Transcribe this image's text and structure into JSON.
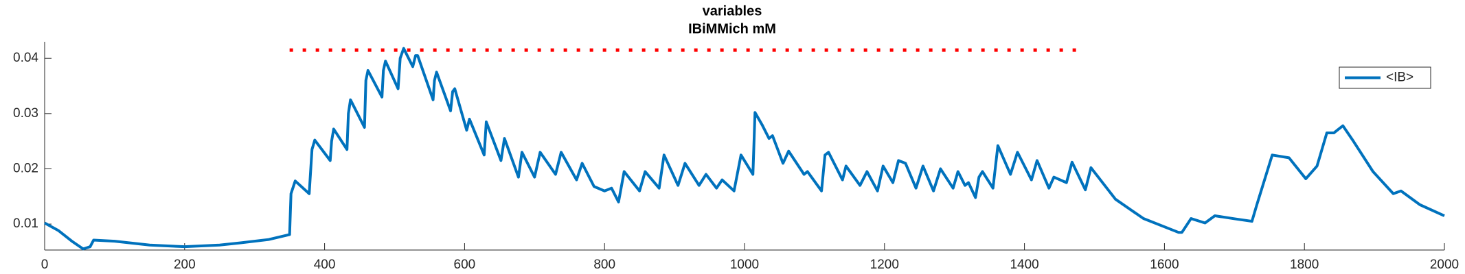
{
  "chart_data": {
    "type": "line",
    "title": "variables",
    "subtitle": "IBiMMich mM",
    "xlim": [
      0,
      2000
    ],
    "xticks": [
      0,
      200,
      400,
      600,
      800,
      1000,
      1200,
      1400,
      1600,
      1800,
      2000
    ],
    "ylim": [
      0.0053,
      0.043
    ],
    "yticks": [
      0.01,
      0.02,
      0.03,
      0.04
    ],
    "grid": false,
    "legend": "upper right",
    "series": [
      {
        "name": "<IB>",
        "color": "#0072bd",
        "linestyle": "solid",
        "x": [
          0,
          20,
          40,
          55,
          65,
          70,
          100,
          150,
          200,
          250,
          280,
          320,
          350,
          352,
          358,
          378,
          382,
          386,
          408,
          410,
          413,
          432,
          434,
          437,
          457,
          459,
          462,
          482,
          484,
          487,
          505,
          508,
          513,
          526,
          530,
          533,
          555,
          557,
          560,
          580,
          583,
          586,
          603,
          607,
          628,
          631,
          652,
          657,
          677,
          682,
          700,
          708,
          730,
          738,
          760,
          768,
          785,
          800,
          810,
          820,
          828,
          850,
          858,
          878,
          885,
          905,
          915,
          935,
          945,
          960,
          968,
          985,
          995,
          1012,
          1015,
          1025,
          1035,
          1040,
          1055,
          1063,
          1085,
          1090,
          1110,
          1115,
          1120,
          1140,
          1145,
          1165,
          1175,
          1190,
          1198,
          1212,
          1220,
          1230,
          1245,
          1255,
          1270,
          1280,
          1298,
          1305,
          1315,
          1320,
          1330,
          1335,
          1340,
          1355,
          1362,
          1380,
          1390,
          1410,
          1418,
          1435,
          1442,
          1460,
          1468,
          1487,
          1495,
          1530,
          1570,
          1620,
          1625,
          1638,
          1658,
          1672,
          1698,
          1725,
          1732,
          1754,
          1778,
          1802,
          1818,
          1832,
          1842,
          1855,
          1870,
          1898,
          1927,
          1938,
          1965,
          2000
        ],
        "values": [
          0.0102,
          0.0088,
          0.0068,
          0.0055,
          0.0059,
          0.0071,
          0.0069,
          0.0062,
          0.0059,
          0.0062,
          0.0066,
          0.0072,
          0.0081,
          0.0155,
          0.0178,
          0.0155,
          0.0235,
          0.0252,
          0.0215,
          0.025,
          0.0272,
          0.0235,
          0.03,
          0.0325,
          0.0275,
          0.036,
          0.0378,
          0.033,
          0.0378,
          0.0395,
          0.0345,
          0.04,
          0.0418,
          0.0385,
          0.0405,
          0.0405,
          0.0325,
          0.036,
          0.0375,
          0.0305,
          0.034,
          0.0345,
          0.027,
          0.029,
          0.0225,
          0.0285,
          0.0215,
          0.0255,
          0.0185,
          0.023,
          0.0185,
          0.023,
          0.019,
          0.023,
          0.018,
          0.021,
          0.0168,
          0.016,
          0.0165,
          0.014,
          0.0195,
          0.016,
          0.0195,
          0.0165,
          0.0225,
          0.017,
          0.021,
          0.017,
          0.019,
          0.0165,
          0.018,
          0.016,
          0.0225,
          0.019,
          0.0302,
          0.028,
          0.0255,
          0.026,
          0.021,
          0.0232,
          0.019,
          0.0195,
          0.016,
          0.0225,
          0.023,
          0.018,
          0.0205,
          0.017,
          0.0195,
          0.016,
          0.0205,
          0.0175,
          0.0215,
          0.021,
          0.0165,
          0.0205,
          0.016,
          0.02,
          0.0165,
          0.0195,
          0.017,
          0.0175,
          0.0148,
          0.0185,
          0.0195,
          0.0165,
          0.0242,
          0.019,
          0.023,
          0.018,
          0.0215,
          0.0165,
          0.0185,
          0.0175,
          0.0212,
          0.0162,
          0.0202,
          0.0145,
          0.011,
          0.0085,
          0.0085,
          0.011,
          0.0102,
          0.0115,
          0.011,
          0.0105,
          0.0135,
          0.0225,
          0.022,
          0.0182,
          0.0205,
          0.0265,
          0.0265,
          0.0278,
          0.025,
          0.0195,
          0.0155,
          0.016,
          0.0135,
          0.0115
        ]
      },
      {
        "color": "#ff0000",
        "linestyle": "dotted",
        "x": [
          350,
          1480
        ],
        "values": [
          0.0415,
          0.0415
        ]
      }
    ]
  }
}
